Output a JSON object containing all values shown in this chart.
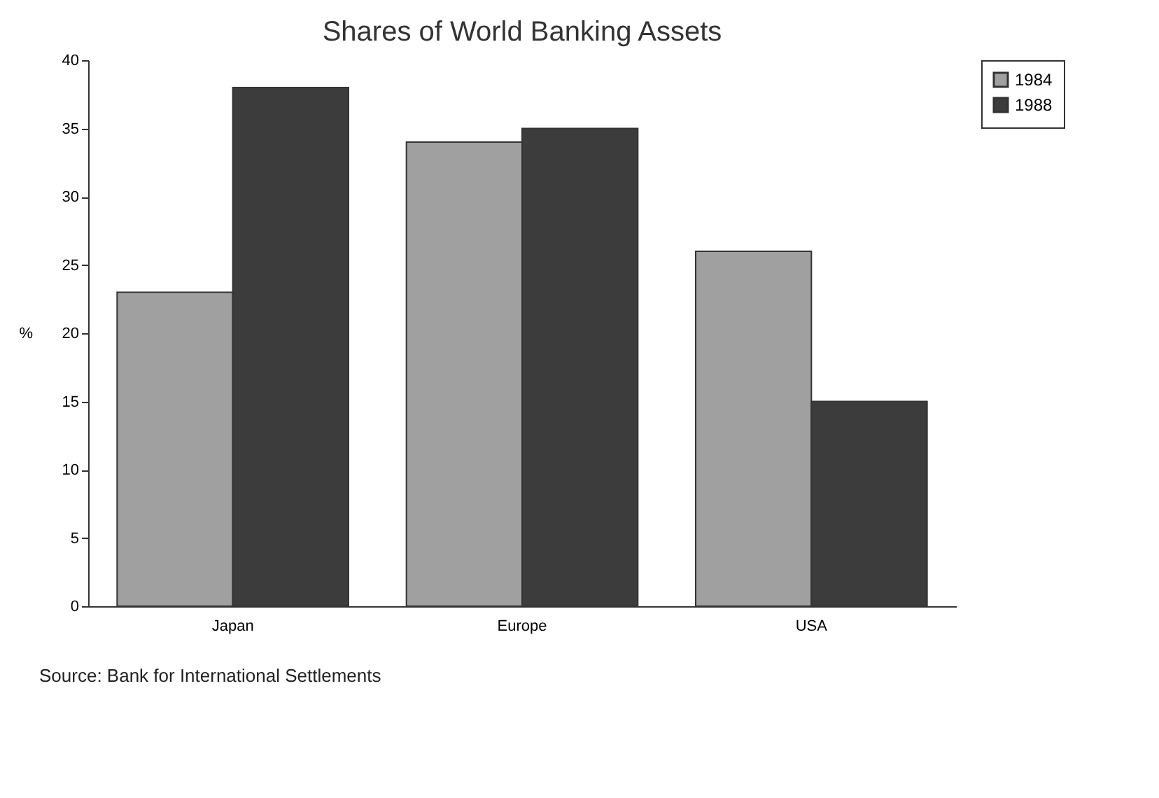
{
  "chart_data": {
    "type": "bar",
    "title": "Shares of World Banking Assets",
    "ylabel": "%",
    "categories": [
      "Japan",
      "Europe",
      "USA"
    ],
    "series": [
      {
        "name": "1984",
        "color": "#a0a0a0",
        "values": [
          23,
          34,
          26
        ]
      },
      {
        "name": "1988",
        "color": "#3c3c3c",
        "values": [
          38,
          35,
          15
        ]
      }
    ],
    "ylim": [
      0,
      40
    ],
    "yticks": [
      0,
      5,
      10,
      15,
      20,
      25,
      30,
      35,
      40
    ],
    "grid": false,
    "legend": "right",
    "annotations": [
      "Source: Bank for International Settlements"
    ]
  }
}
